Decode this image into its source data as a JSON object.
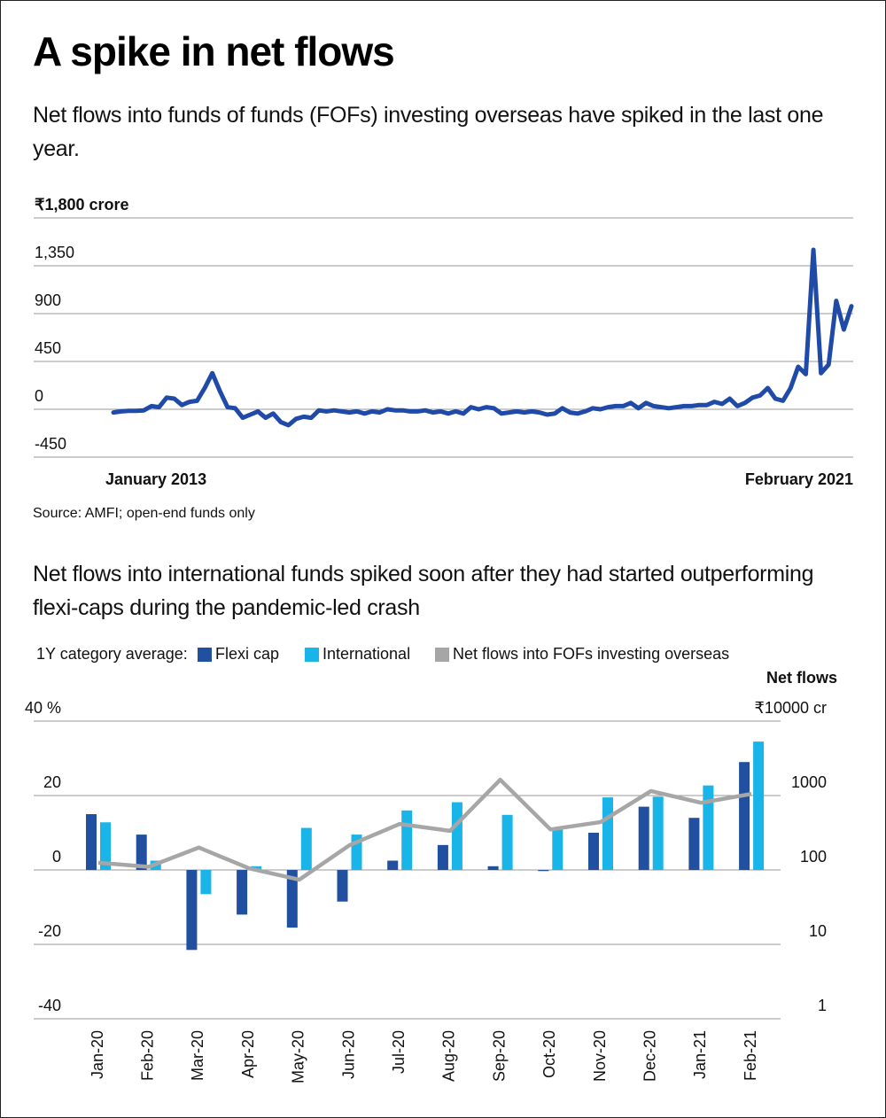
{
  "header": {
    "title": "A spike in net flows",
    "subtitle": "Net flows into funds of funds (FOFs) investing overseas have spiked in the last one year."
  },
  "chart_data": [
    {
      "type": "line",
      "categories": [
        "January 2013",
        null,
        null,
        null,
        null,
        null,
        null,
        null,
        null,
        null,
        null,
        null,
        null,
        null,
        null,
        null,
        null,
        null,
        null,
        null,
        null,
        null,
        null,
        null,
        null,
        null,
        null,
        null,
        null,
        null,
        null,
        null,
        null,
        null,
        null,
        null,
        null,
        null,
        null,
        null,
        null,
        null,
        null,
        null,
        null,
        null,
        null,
        null,
        null,
        null,
        null,
        null,
        null,
        null,
        null,
        null,
        null,
        null,
        null,
        null,
        null,
        null,
        null,
        null,
        null,
        null,
        null,
        null,
        null,
        null,
        null,
        null,
        null,
        null,
        null,
        null,
        null,
        null,
        null,
        null,
        null,
        null,
        null,
        null,
        null,
        null,
        null,
        null,
        null,
        null,
        null,
        null,
        null,
        null,
        null,
        null,
        null,
        "February 2021"
      ],
      "values": [
        -30,
        -20,
        -15,
        -15,
        -10,
        30,
        20,
        110,
        100,
        40,
        70,
        80,
        200,
        340,
        170,
        20,
        10,
        -80,
        -50,
        -20,
        -80,
        -40,
        -120,
        -150,
        -90,
        -70,
        -80,
        -10,
        -20,
        -10,
        -20,
        -30,
        -20,
        -40,
        -20,
        -30,
        0,
        -10,
        -10,
        -20,
        -20,
        -10,
        -30,
        -20,
        -40,
        -20,
        -40,
        20,
        0,
        20,
        10,
        -40,
        -30,
        -20,
        -30,
        -20,
        -30,
        -50,
        -40,
        10,
        -30,
        -40,
        -20,
        10,
        0,
        20,
        30,
        30,
        60,
        10,
        60,
        30,
        20,
        10,
        20,
        30,
        30,
        40,
        40,
        70,
        50,
        100,
        30,
        60,
        110,
        130,
        200,
        100,
        80,
        200,
        400,
        330,
        1500,
        340,
        420,
        1020,
        750,
        970
      ],
      "color": "#1f4aa8",
      "ylim": [
        -450,
        1800
      ],
      "yticks": [
        -450,
        0,
        450,
        900,
        {
          "value": 1350,
          "label": "1,350"
        },
        {
          "value": 1800,
          "label": "₹1,800 crore"
        }
      ],
      "grid": true,
      "note": "Source: AMFI; open-end funds only"
    },
    {
      "type": "bar",
      "title": "Net flows into international funds spiked soon after they had started outperforming flexi-caps during the pandemic-led crash",
      "legend_title": "1Y category average:",
      "categories": [
        "Jan-20",
        "Feb-20",
        "Mar-20",
        "Apr-20",
        "May-20",
        "Jun-20",
        "Jul-20",
        "Aug-20",
        "Sep-20",
        "Oct-20",
        "Nov-20",
        "Dec-20",
        "Jan-21",
        "Feb-21"
      ],
      "series": [
        {
          "name": "Flexi cap",
          "color": "#2150a0",
          "values": [
            15,
            9.5,
            -21.5,
            -12,
            -15.5,
            -8.5,
            2.5,
            6.7,
            1,
            -0.3,
            10,
            17,
            14,
            29
          ]
        },
        {
          "name": "International",
          "color": "#19b4e8",
          "values": [
            12.8,
            2.5,
            -6.5,
            1,
            11.3,
            9.5,
            16,
            18.2,
            14.8,
            11,
            19.5,
            19.7,
            22.7,
            34.5
          ]
        },
        {
          "name": "Net flows into FOFs investing overseas",
          "color": "#a6a6a6",
          "type": "line",
          "axis": "y2",
          "values": [
            125,
            110,
            200,
            105,
            74,
            215,
            415,
            335,
            1630,
            350,
            440,
            1150,
            800,
            1050
          ]
        }
      ],
      "ylim": [
        -40,
        40
      ],
      "yticks": [
        -40,
        -20,
        0,
        20,
        {
          "value": 40,
          "label": "40 %"
        }
      ],
      "y2lim": [
        1,
        10000
      ],
      "y2ticks": [
        1,
        10,
        100,
        1000,
        {
          "value": 10000,
          "label": "₹10000 cr"
        }
      ],
      "y2_label": "Net flows",
      "y2_scale": "log",
      "grid": true
    }
  ]
}
